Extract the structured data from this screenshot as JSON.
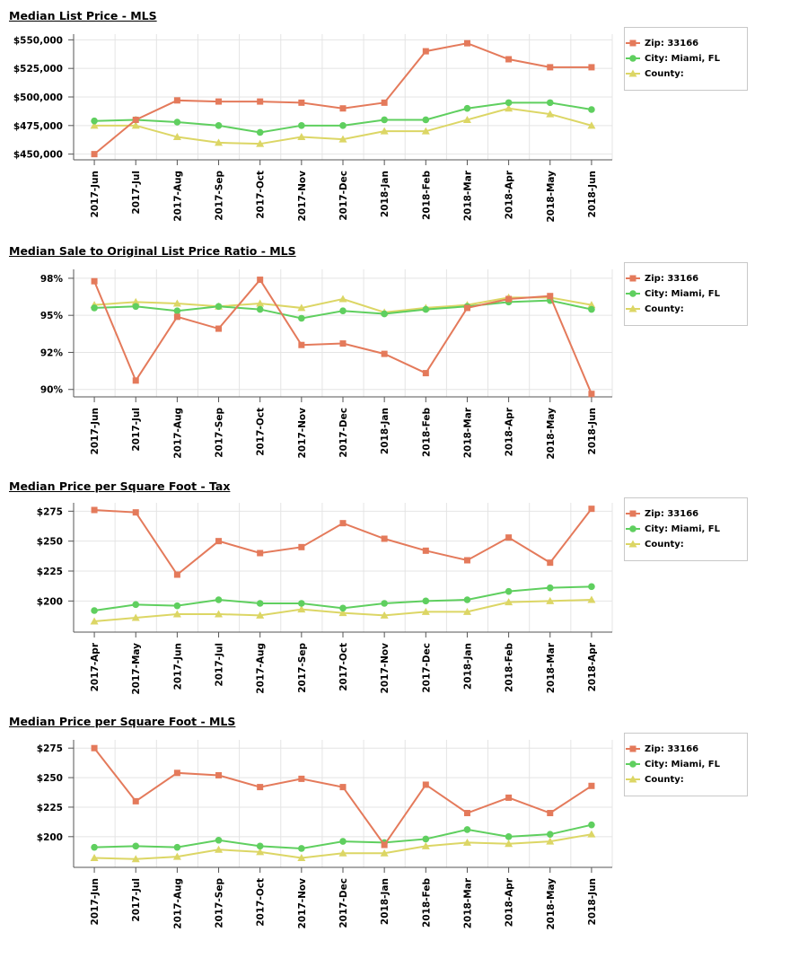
{
  "colors": {
    "zip": "#e47a5b",
    "city": "#5fcf5f",
    "county": "#dcd665",
    "grid": "#e4e4e4",
    "axis": "#555555"
  },
  "legend": {
    "zip": "Zip: 33166",
    "city": "City: Miami, FL",
    "county": "County:"
  },
  "chart_data": [
    {
      "type": "line",
      "title": "Median List Price - MLS",
      "categories": [
        "2017-Jun",
        "2017-Jul",
        "2017-Aug",
        "2017-Sep",
        "2017-Oct",
        "2017-Nov",
        "2017-Dec",
        "2018-Jan",
        "2018-Feb",
        "2018-Mar",
        "2018-Apr",
        "2018-May",
        "2018-Jun"
      ],
      "y_ticks": [
        450000,
        475000,
        500000,
        525000,
        550000
      ],
      "y_tick_labels": [
        "$450,000",
        "$475,000",
        "$500,000",
        "$525,000",
        "$550,000"
      ],
      "ylim": [
        445000,
        555000
      ],
      "series": [
        {
          "name": "Zip: 33166",
          "marker": "square",
          "values": [
            450000,
            480000,
            497000,
            496000,
            496000,
            495000,
            490000,
            495000,
            540000,
            547000,
            533000,
            526000,
            526000
          ]
        },
        {
          "name": "City: Miami, FL",
          "marker": "circle",
          "values": [
            479000,
            480000,
            478000,
            475000,
            469000,
            475000,
            475000,
            480000,
            480000,
            490000,
            495000,
            495000,
            489000
          ]
        },
        {
          "name": "County:",
          "marker": "triangle",
          "values": [
            475000,
            475000,
            465000,
            460000,
            459000,
            465000,
            463000,
            470000,
            470000,
            480000,
            490000,
            485000,
            475000
          ]
        }
      ]
    },
    {
      "type": "line",
      "title": "Median Sale to Original List Price Ratio - MLS",
      "categories": [
        "2017-Jun",
        "2017-Jul",
        "2017-Aug",
        "2017-Sep",
        "2017-Oct",
        "2017-Nov",
        "2017-Dec",
        "2018-Jan",
        "2018-Feb",
        "2018-Mar",
        "2018-Apr",
        "2018-May",
        "2018-Jun"
      ],
      "y_ticks": [
        90,
        92.5,
        95,
        97.5
      ],
      "y_tick_labels": [
        "90%",
        "92%",
        "95%",
        "98%"
      ],
      "ylim": [
        89.5,
        98.1
      ],
      "series": [
        {
          "name": "Zip: 33166",
          "marker": "square",
          "values": [
            97.3,
            90.6,
            94.9,
            94.1,
            97.4,
            93.0,
            93.1,
            92.4,
            91.1,
            95.5,
            96.1,
            96.3,
            89.7
          ]
        },
        {
          "name": "City: Miami, FL",
          "marker": "circle",
          "values": [
            95.5,
            95.6,
            95.3,
            95.6,
            95.4,
            94.8,
            95.3,
            95.1,
            95.4,
            95.6,
            95.9,
            96.0,
            95.4
          ]
        },
        {
          "name": "County:",
          "marker": "triangle",
          "values": [
            95.7,
            95.9,
            95.8,
            95.6,
            95.8,
            95.5,
            96.1,
            95.2,
            95.5,
            95.7,
            96.2,
            96.2,
            95.7
          ]
        }
      ]
    },
    {
      "type": "line",
      "title": "Median Price per Square Foot - Tax",
      "categories": [
        "2017-Apr",
        "2017-May",
        "2017-Jun",
        "2017-Jul",
        "2017-Aug",
        "2017-Sep",
        "2017-Oct",
        "2017-Nov",
        "2017-Dec",
        "2018-Jan",
        "2018-Feb",
        "2018-Mar",
        "2018-Apr"
      ],
      "y_ticks": [
        200,
        225,
        250,
        275
      ],
      "y_tick_labels": [
        "$200",
        "$225",
        "$250",
        "$275"
      ],
      "ylim": [
        174,
        282
      ],
      "series": [
        {
          "name": "Zip: 33166",
          "marker": "square",
          "values": [
            276,
            274,
            222,
            250,
            240,
            245,
            265,
            252,
            242,
            234,
            253,
            232,
            277
          ]
        },
        {
          "name": "City: Miami, FL",
          "marker": "circle",
          "values": [
            192,
            197,
            196,
            201,
            198,
            198,
            194,
            198,
            200,
            201,
            208,
            211,
            212
          ]
        },
        {
          "name": "County:",
          "marker": "triangle",
          "values": [
            183,
            186,
            189,
            189,
            188,
            193,
            190,
            188,
            191,
            191,
            199,
            200,
            201
          ]
        }
      ]
    },
    {
      "type": "line",
      "title": "Median Price per Square Foot - MLS",
      "categories": [
        "2017-Jun",
        "2017-Jul",
        "2017-Aug",
        "2017-Sep",
        "2017-Oct",
        "2017-Nov",
        "2017-Dec",
        "2018-Jan",
        "2018-Feb",
        "2018-Mar",
        "2018-Apr",
        "2018-May",
        "2018-Jun"
      ],
      "y_ticks": [
        200,
        225,
        250,
        275
      ],
      "y_tick_labels": [
        "$200",
        "$225",
        "$250",
        "$275"
      ],
      "ylim": [
        174,
        282
      ],
      "series": [
        {
          "name": "Zip: 33166",
          "marker": "square",
          "values": [
            275,
            230,
            254,
            252,
            242,
            249,
            242,
            193,
            244,
            220,
            233,
            220,
            243
          ]
        },
        {
          "name": "City: Miami, FL",
          "marker": "circle",
          "values": [
            191,
            192,
            191,
            197,
            192,
            190,
            196,
            195,
            198,
            206,
            200,
            202,
            210
          ]
        },
        {
          "name": "County:",
          "marker": "triangle",
          "values": [
            182,
            181,
            183,
            189,
            187,
            182,
            186,
            186,
            192,
            195,
            194,
            196,
            202
          ]
        }
      ]
    }
  ]
}
